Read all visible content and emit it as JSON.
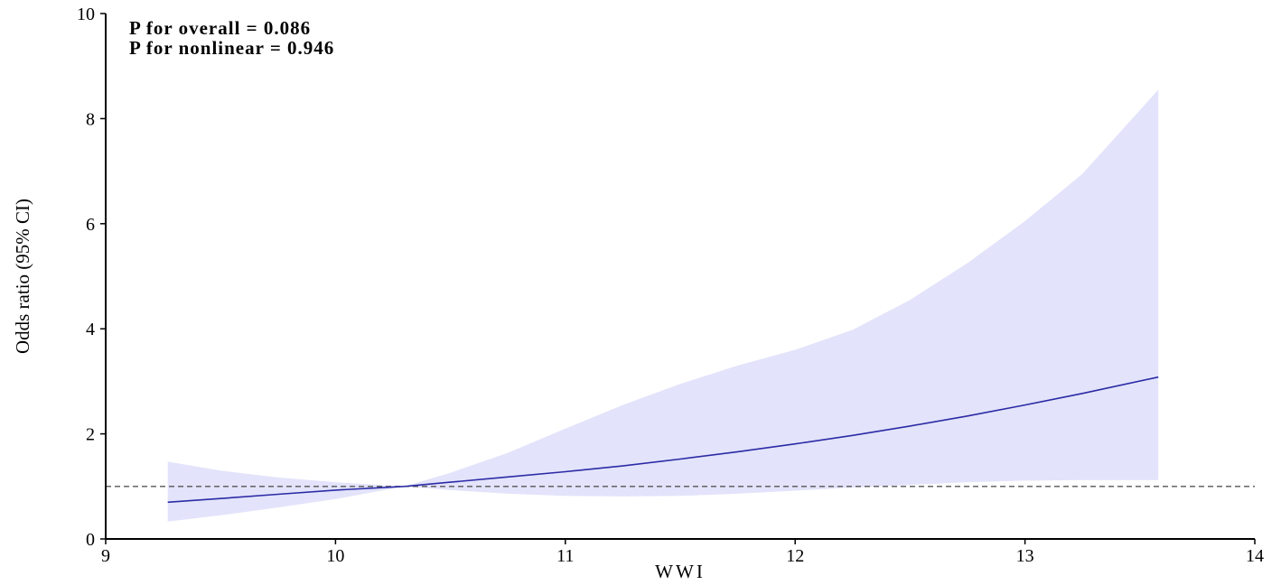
{
  "chart_data": {
    "type": "line",
    "title": "",
    "xlabel": "WWI",
    "ylabel": "Odds ratio (95% CI)",
    "xlim": [
      9,
      14
    ],
    "ylim": [
      0,
      10
    ],
    "x_ticks": [
      "9",
      "10",
      "11",
      "12",
      "13",
      "14"
    ],
    "y_ticks": [
      "0",
      "2",
      "4",
      "6",
      "8",
      "10"
    ],
    "reference_line": {
      "y": 1,
      "style": "dashed",
      "color": "#555555"
    },
    "annotations": [
      "P for overall = 0.086",
      "P for nonlinear = 0.946"
    ],
    "colors": {
      "line": "#2b2ba6",
      "band": "#e3e3fb"
    },
    "series": [
      {
        "x": [
          9.27,
          9.5,
          9.75,
          10.0,
          10.3,
          10.5,
          10.75,
          11.0,
          11.25,
          11.5,
          11.75,
          12.0,
          12.25,
          12.5,
          12.75,
          13.0,
          13.25,
          13.58
        ],
        "y": [
          0.7,
          0.77,
          0.85,
          0.93,
          1.0,
          1.08,
          1.18,
          1.28,
          1.39,
          1.52,
          1.66,
          1.81,
          1.97,
          2.15,
          2.34,
          2.55,
          2.77,
          3.08
        ],
        "lower": [
          0.33,
          0.45,
          0.6,
          0.76,
          1.0,
          0.93,
          0.86,
          0.82,
          0.81,
          0.82,
          0.86,
          0.92,
          0.98,
          1.03,
          1.08,
          1.11,
          1.12,
          1.12
        ],
        "upper": [
          1.47,
          1.3,
          1.17,
          1.08,
          1.0,
          1.26,
          1.64,
          2.1,
          2.55,
          2.95,
          3.3,
          3.6,
          3.98,
          4.55,
          5.25,
          6.05,
          6.95,
          8.55
        ]
      }
    ]
  }
}
